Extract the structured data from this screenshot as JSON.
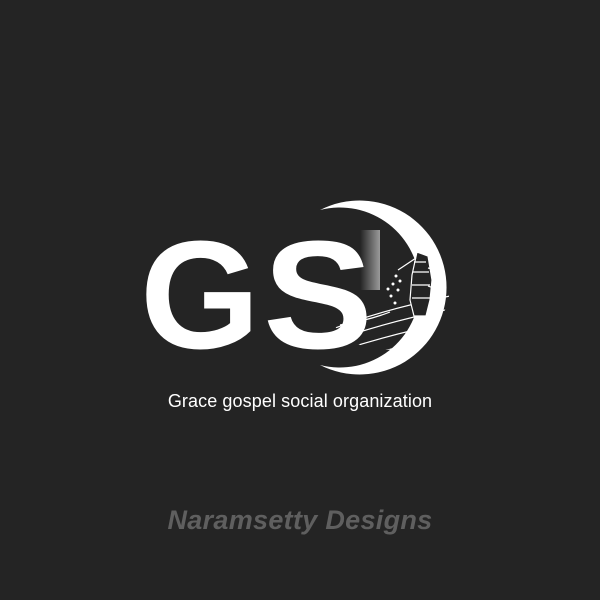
{
  "logo": {
    "letter_g": "G",
    "letter_s": "S",
    "emblem": "sower-illustration-icon"
  },
  "tagline": "Grace gospel social organization",
  "credit": "Naramsetty Designs",
  "colors": {
    "background": "#242424",
    "logo": "#ffffff",
    "tagline": "#ffffff",
    "credit": "#5f5f5f"
  }
}
